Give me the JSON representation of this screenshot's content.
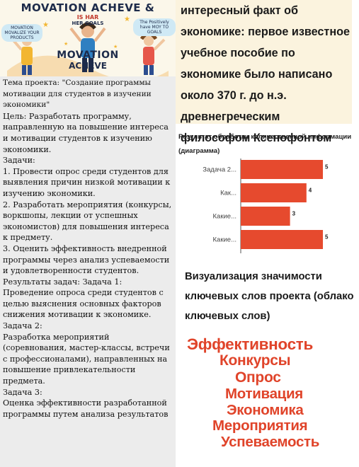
{
  "poster": {
    "title_top": "MOVATION ACHEVE &",
    "title_small": "IS HAR",
    "title_small_2": "HER GOALS",
    "title_bottom": "MOVATION",
    "title_bottom_2": "ACHEVE",
    "bubble_left": "MOVATION MOVALIZE YOUR PRODUCTS",
    "bubble_right": "The Positively have MOY TO GOALS"
  },
  "left": {
    "topic": "Тема проекта: \"Создание программы мотивации для студентов в изучении экономики\"",
    "goal": "Цель: Разработать программу, направленную на повышение интереса и мотивации студентов к изучению экономики.",
    "tasks_header": "Задачи:",
    "task1": "1. Провести опрос среди студентов для выявления причин низкой мотивации к изучению экономики.",
    "task2": "2. Разработать мероприятия (конкурсы, воркшопы, лекции от успешных экономистов) для повышения интереса к предмету.",
    "task3": "3. Оценить эффективность внедренной программы через анализ успеваемости и удовлетворенности студентов.",
    "results_header": "Результаты задач: Задача 1:",
    "result1": "Проведение опроса среди студентов с целью выяснения основных факторов снижения мотивации к экономике.",
    "result2_header": "Задача 2:",
    "result2": "Разработка мероприятий (соревнования, мастер-классы, встречи с профессионалами), направленных на повышение привлекательности предмета.",
    "result3_header": "Задача 3:",
    "result3": "Оценка эффективности разработанной программы путем анализа результатов"
  },
  "fact": {
    "text": "интересный факт об экономике: первое известное учебное пособие по экономике было написано около 370 г. до н.э. древнегреческим философом Ксенофонтом"
  },
  "chart_title": "Результат обработки количественной информации (диаграмма)",
  "chart_data": {
    "type": "bar",
    "orientation": "horizontal",
    "categories": [
      "Задача 2...",
      "Как...",
      "Какие...",
      "Какие..."
    ],
    "values": [
      5,
      4,
      3,
      5
    ],
    "xlim": [
      0,
      5
    ],
    "grid": false,
    "bar_color": "#e64a2e"
  },
  "cloud": {
    "title": "Визуализация значимости ключевых слов проекта (облако ключевых слов)",
    "words": [
      "Эффективность",
      "Конкурсы",
      "Опрос",
      "Мотивация",
      "Экономика",
      "Мероприятия",
      "Успеваемость"
    ],
    "color": "#e0442a"
  }
}
